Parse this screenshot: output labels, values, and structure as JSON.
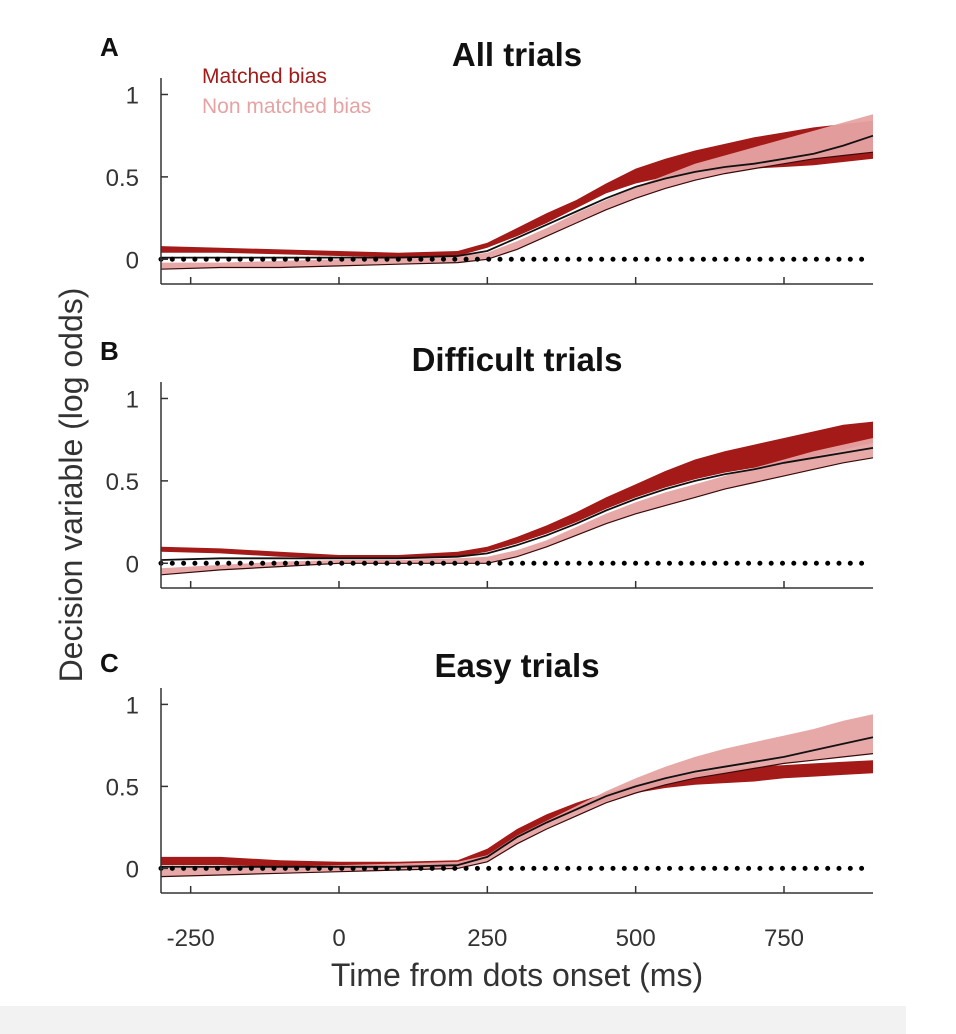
{
  "chart_data": [
    {
      "panel": "A",
      "title": "All trials",
      "type": "line",
      "xlim": [
        -300,
        900
      ],
      "ylim": [
        -0.15,
        1.1
      ],
      "series": [
        {
          "name": "Matched bias",
          "color": "#a31a18",
          "x": [
            -300,
            -200,
            -100,
            0,
            100,
            200,
            250,
            300,
            350,
            400,
            450,
            500,
            550,
            600,
            650,
            700,
            750,
            800,
            850,
            900
          ],
          "lower": [
            0.04,
            0.04,
            0.03,
            0.02,
            0.01,
            0.02,
            0.07,
            0.14,
            0.22,
            0.31,
            0.4,
            0.46,
            0.5,
            0.53,
            0.54,
            0.55,
            0.56,
            0.57,
            0.59,
            0.61
          ],
          "upper": [
            0.08,
            0.07,
            0.06,
            0.05,
            0.04,
            0.05,
            0.1,
            0.19,
            0.28,
            0.36,
            0.46,
            0.55,
            0.61,
            0.66,
            0.7,
            0.74,
            0.77,
            0.8,
            0.82,
            0.84
          ]
        },
        {
          "name": "Non matched bias",
          "color": "#e6a3a3",
          "x": [
            -300,
            -200,
            -100,
            0,
            100,
            200,
            250,
            300,
            350,
            400,
            450,
            500,
            550,
            600,
            650,
            700,
            750,
            800,
            850,
            900
          ],
          "lower": [
            -0.06,
            -0.05,
            -0.05,
            -0.04,
            -0.03,
            -0.02,
            0.0,
            0.06,
            0.14,
            0.22,
            0.3,
            0.37,
            0.43,
            0.48,
            0.52,
            0.55,
            0.58,
            0.61,
            0.63,
            0.65
          ],
          "upper": [
            -0.02,
            -0.02,
            -0.01,
            0.0,
            0.01,
            0.02,
            0.04,
            0.11,
            0.19,
            0.28,
            0.36,
            0.44,
            0.51,
            0.58,
            0.63,
            0.68,
            0.73,
            0.78,
            0.83,
            0.88
          ]
        }
      ],
      "mean": [
        0.01,
        0.01,
        0.01,
        0.01,
        0.01,
        0.02,
        0.05,
        0.13,
        0.21,
        0.29,
        0.37,
        0.44,
        0.49,
        0.53,
        0.56,
        0.58,
        0.61,
        0.64,
        0.69,
        0.75
      ]
    },
    {
      "panel": "B",
      "title": "Difficult trials",
      "type": "line",
      "xlim": [
        -300,
        900
      ],
      "ylim": [
        -0.15,
        1.1
      ],
      "series": [
        {
          "name": "Matched bias",
          "color": "#a31a18",
          "x": [
            -300,
            -200,
            -100,
            0,
            100,
            200,
            250,
            300,
            350,
            400,
            450,
            500,
            550,
            600,
            650,
            700,
            750,
            800,
            850,
            900
          ],
          "lower": [
            0.07,
            0.06,
            0.04,
            0.03,
            0.03,
            0.04,
            0.07,
            0.12,
            0.18,
            0.25,
            0.33,
            0.4,
            0.46,
            0.51,
            0.55,
            0.58,
            0.61,
            0.65,
            0.69,
            0.73
          ],
          "upper": [
            0.1,
            0.09,
            0.07,
            0.05,
            0.05,
            0.07,
            0.1,
            0.16,
            0.23,
            0.31,
            0.4,
            0.48,
            0.56,
            0.63,
            0.68,
            0.72,
            0.76,
            0.8,
            0.84,
            0.86
          ]
        },
        {
          "name": "Non matched bias",
          "color": "#e6a3a3",
          "x": [
            -300,
            -200,
            -100,
            0,
            100,
            200,
            250,
            300,
            350,
            400,
            450,
            500,
            550,
            600,
            650,
            700,
            750,
            800,
            850,
            900
          ],
          "lower": [
            -0.07,
            -0.04,
            -0.02,
            0.0,
            0.0,
            0.0,
            0.0,
            0.04,
            0.1,
            0.17,
            0.24,
            0.3,
            0.35,
            0.4,
            0.45,
            0.49,
            0.53,
            0.57,
            0.61,
            0.64
          ],
          "upper": [
            -0.03,
            -0.01,
            0.01,
            0.02,
            0.02,
            0.03,
            0.04,
            0.08,
            0.14,
            0.22,
            0.3,
            0.37,
            0.43,
            0.48,
            0.53,
            0.58,
            0.63,
            0.68,
            0.72,
            0.76
          ]
        }
      ],
      "mean": [
        0.02,
        0.03,
        0.03,
        0.03,
        0.03,
        0.04,
        0.06,
        0.11,
        0.17,
        0.24,
        0.32,
        0.39,
        0.45,
        0.5,
        0.54,
        0.57,
        0.61,
        0.64,
        0.67,
        0.7
      ]
    },
    {
      "panel": "C",
      "title": "Easy trials",
      "type": "line",
      "xlim": [
        -300,
        900
      ],
      "ylim": [
        -0.15,
        1.1
      ],
      "series": [
        {
          "name": "Matched bias",
          "color": "#a31a18",
          "x": [
            -300,
            -200,
            -100,
            0,
            100,
            200,
            250,
            300,
            350,
            400,
            450,
            500,
            550,
            600,
            650,
            700,
            750,
            800,
            850,
            900
          ],
          "lower": [
            0.02,
            0.02,
            0.01,
            0.0,
            0.0,
            0.01,
            0.08,
            0.19,
            0.28,
            0.35,
            0.41,
            0.46,
            0.49,
            0.51,
            0.52,
            0.53,
            0.55,
            0.56,
            0.57,
            0.58
          ],
          "upper": [
            0.07,
            0.07,
            0.05,
            0.04,
            0.04,
            0.05,
            0.12,
            0.24,
            0.33,
            0.4,
            0.46,
            0.51,
            0.55,
            0.58,
            0.6,
            0.62,
            0.63,
            0.64,
            0.65,
            0.66
          ]
        },
        {
          "name": "Non matched bias",
          "color": "#e6a3a3",
          "x": [
            -300,
            -200,
            -100,
            0,
            100,
            200,
            250,
            300,
            350,
            400,
            450,
            500,
            550,
            600,
            650,
            700,
            750,
            800,
            850,
            900
          ],
          "lower": [
            -0.05,
            -0.04,
            -0.03,
            -0.02,
            -0.01,
            0.0,
            0.04,
            0.15,
            0.24,
            0.32,
            0.4,
            0.46,
            0.51,
            0.55,
            0.58,
            0.61,
            0.64,
            0.66,
            0.68,
            0.7
          ],
          "upper": [
            0.0,
            0.01,
            0.01,
            0.02,
            0.03,
            0.04,
            0.08,
            0.2,
            0.29,
            0.38,
            0.47,
            0.55,
            0.62,
            0.68,
            0.73,
            0.77,
            0.81,
            0.85,
            0.9,
            0.94
          ]
        }
      ],
      "mean": [
        0.01,
        0.01,
        0.01,
        0.01,
        0.01,
        0.02,
        0.07,
        0.19,
        0.28,
        0.36,
        0.44,
        0.5,
        0.55,
        0.59,
        0.62,
        0.65,
        0.68,
        0.72,
        0.76,
        0.8
      ]
    }
  ],
  "axes": {
    "ylabel": "Decision variable (log odds)",
    "xlabel": "Time from dots onset (ms)",
    "yticks": [
      0,
      0.5,
      1
    ],
    "ytick_labels": [
      "0",
      "0.5",
      "1"
    ],
    "xticks": [
      -250,
      0,
      250,
      500,
      750
    ],
    "xtick_labels": [
      "-250",
      "0",
      "250",
      "500",
      "750"
    ],
    "reference_line_y": 0
  },
  "legend": {
    "items": [
      {
        "label": "Matched bias",
        "color": "#a31a18"
      },
      {
        "label": "Non matched bias",
        "color": "#e6a3a3"
      }
    ]
  }
}
